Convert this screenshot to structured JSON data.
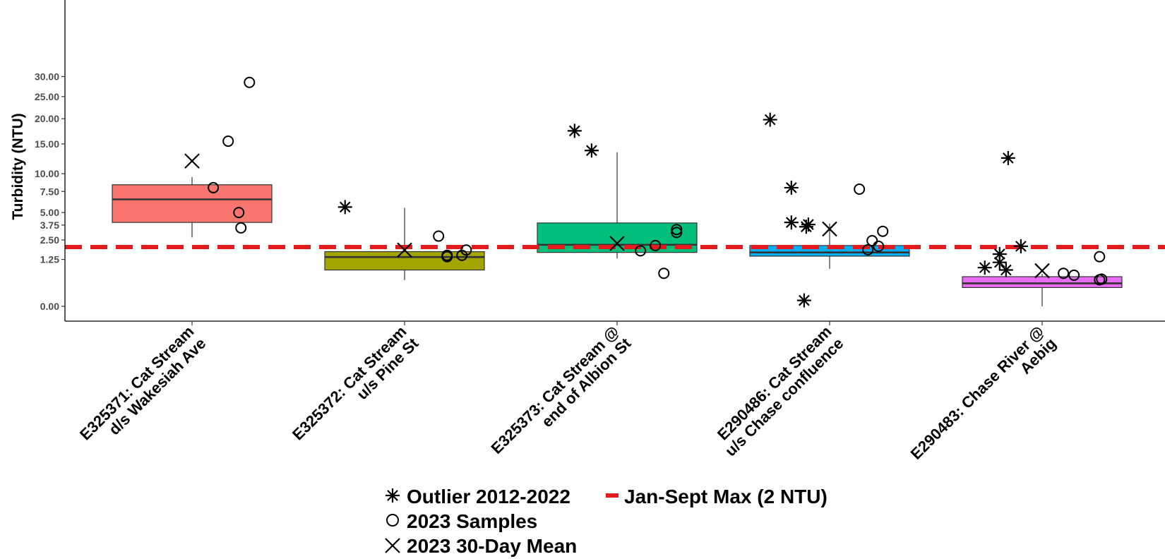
{
  "chart_data": {
    "type": "box",
    "ylabel": "Turbidity (NTU)",
    "xlabel": "",
    "y_scale": "sqrt",
    "ylim": [
      0,
      33
    ],
    "y_ticks": [
      0,
      1.25,
      2.5,
      3.75,
      5,
      7.5,
      10,
      15,
      20,
      25,
      30
    ],
    "y_tick_labels": [
      "0.00",
      "1.25",
      "2.50",
      "3.75",
      "5.00",
      "7.50",
      "10.00",
      "15.00",
      "20.00",
      "25.00",
      "30.00"
    ],
    "grid": false,
    "legend_position": "bottom",
    "categories": [
      {
        "label_line1": "E325371: Cat Stream",
        "label_line2": "d/s Wakesiah Ave",
        "color": "#F8766D"
      },
      {
        "label_line1": "E325372: Cat Stream",
        "label_line2": "u/s Pine St",
        "color": "#A3A500"
      },
      {
        "label_line1": "E325373: Cat Stream @",
        "label_line2": "end of Albion St",
        "color": "#00BF7D"
      },
      {
        "label_line1": "E290486: Cat Stream",
        "label_line2": "u/s Chase confluence",
        "color": "#00B0F6"
      },
      {
        "label_line1": "E290483: Chase River @",
        "label_line2": "Aebig",
        "color": "#E76BF3"
      }
    ],
    "boxes": [
      {
        "whisker_low": 2.7,
        "q1": 4.0,
        "median": 6.5,
        "q3": 8.4,
        "whisker_high": 9.5
      },
      {
        "whisker_low": 0.39,
        "q1": 0.75,
        "median": 1.38,
        "q3": 1.7,
        "whisker_high": 5.5
      },
      {
        "whisker_low": 1.3,
        "q1": 1.65,
        "median": 2.15,
        "q3": 3.95,
        "whisker_high": 13.5
      },
      {
        "whisker_low": 0.8,
        "q1": 1.43,
        "median": 1.65,
        "q3": 2.1,
        "whisker_high": 3.9
      },
      {
        "whisker_low": 0.0,
        "q1": 0.2,
        "median": 0.3,
        "q3": 0.5,
        "whisker_high": 0.6
      }
    ],
    "series": [
      {
        "name": "Outlier 2012-2022",
        "marker": "asterisk",
        "points": [
          {
            "cat": 1,
            "dx": -0.28,
            "y": 5.6
          },
          {
            "cat": 2,
            "dx": -0.2,
            "y": 17.5
          },
          {
            "cat": 2,
            "dx": -0.12,
            "y": 13.8
          },
          {
            "cat": 3,
            "dx": -0.28,
            "y": 19.8
          },
          {
            "cat": 3,
            "dx": -0.18,
            "y": 8.0
          },
          {
            "cat": 3,
            "dx": -0.18,
            "y": 4.0
          },
          {
            "cat": 3,
            "dx": -0.1,
            "y": 3.8
          },
          {
            "cat": 3,
            "dx": -0.11,
            "y": 3.6
          },
          {
            "cat": 3,
            "dx": -0.12,
            "y": 0.02
          },
          {
            "cat": 4,
            "dx": -0.27,
            "y": 0.85
          },
          {
            "cat": 4,
            "dx": -0.2,
            "y": 1.55
          },
          {
            "cat": 4,
            "dx": -0.2,
            "y": 1.1
          },
          {
            "cat": 4,
            "dx": -0.17,
            "y": 0.75
          },
          {
            "cat": 4,
            "dx": -0.16,
            "y": 12.5
          },
          {
            "cat": 4,
            "dx": -0.1,
            "y": 2.05
          }
        ]
      },
      {
        "name": "2023 Samples",
        "marker": "circle",
        "points": [
          {
            "cat": 0,
            "dx": 0.1,
            "y": 8.0
          },
          {
            "cat": 0,
            "dx": 0.17,
            "y": 15.5
          },
          {
            "cat": 0,
            "dx": 0.22,
            "y": 5.0
          },
          {
            "cat": 0,
            "dx": 0.23,
            "y": 3.5
          },
          {
            "cat": 0,
            "dx": 0.27,
            "y": 28.5
          },
          {
            "cat": 1,
            "dx": 0.16,
            "y": 2.8
          },
          {
            "cat": 1,
            "dx": 0.2,
            "y": 1.48
          },
          {
            "cat": 1,
            "dx": 0.2,
            "y": 1.4
          },
          {
            "cat": 1,
            "dx": 0.27,
            "y": 1.48
          },
          {
            "cat": 1,
            "dx": 0.29,
            "y": 1.8
          },
          {
            "cat": 2,
            "dx": 0.11,
            "y": 1.75
          },
          {
            "cat": 2,
            "dx": 0.18,
            "y": 2.1
          },
          {
            "cat": 2,
            "dx": 0.22,
            "y": 0.62
          },
          {
            "cat": 2,
            "dx": 0.28,
            "y": 3.1
          },
          {
            "cat": 2,
            "dx": 0.28,
            "y": 3.35
          },
          {
            "cat": 3,
            "dx": 0.14,
            "y": 7.8
          },
          {
            "cat": 3,
            "dx": 0.18,
            "y": 1.82
          },
          {
            "cat": 3,
            "dx": 0.2,
            "y": 2.45
          },
          {
            "cat": 3,
            "dx": 0.23,
            "y": 2.05
          },
          {
            "cat": 3,
            "dx": 0.25,
            "y": 3.2
          },
          {
            "cat": 4,
            "dx": 0.1,
            "y": 0.62
          },
          {
            "cat": 4,
            "dx": 0.15,
            "y": 0.55
          },
          {
            "cat": 4,
            "dx": 0.27,
            "y": 0.4
          },
          {
            "cat": 4,
            "dx": 0.28,
            "y": 0.42
          },
          {
            "cat": 4,
            "dx": 0.27,
            "y": 1.4
          }
        ]
      },
      {
        "name": "2023 30-Day Mean",
        "marker": "cross",
        "points": [
          {
            "cat": 0,
            "dx": 0,
            "y": 12.0
          },
          {
            "cat": 1,
            "dx": 0,
            "y": 1.8
          },
          {
            "cat": 2,
            "dx": 0,
            "y": 2.25
          },
          {
            "cat": 3,
            "dx": 0,
            "y": 3.4
          },
          {
            "cat": 4,
            "dx": 0,
            "y": 0.72
          }
        ]
      }
    ],
    "reference_line": {
      "name": "Jan-Sept Max (2 NTU)",
      "y": 2,
      "color": "#E41A1C"
    }
  }
}
